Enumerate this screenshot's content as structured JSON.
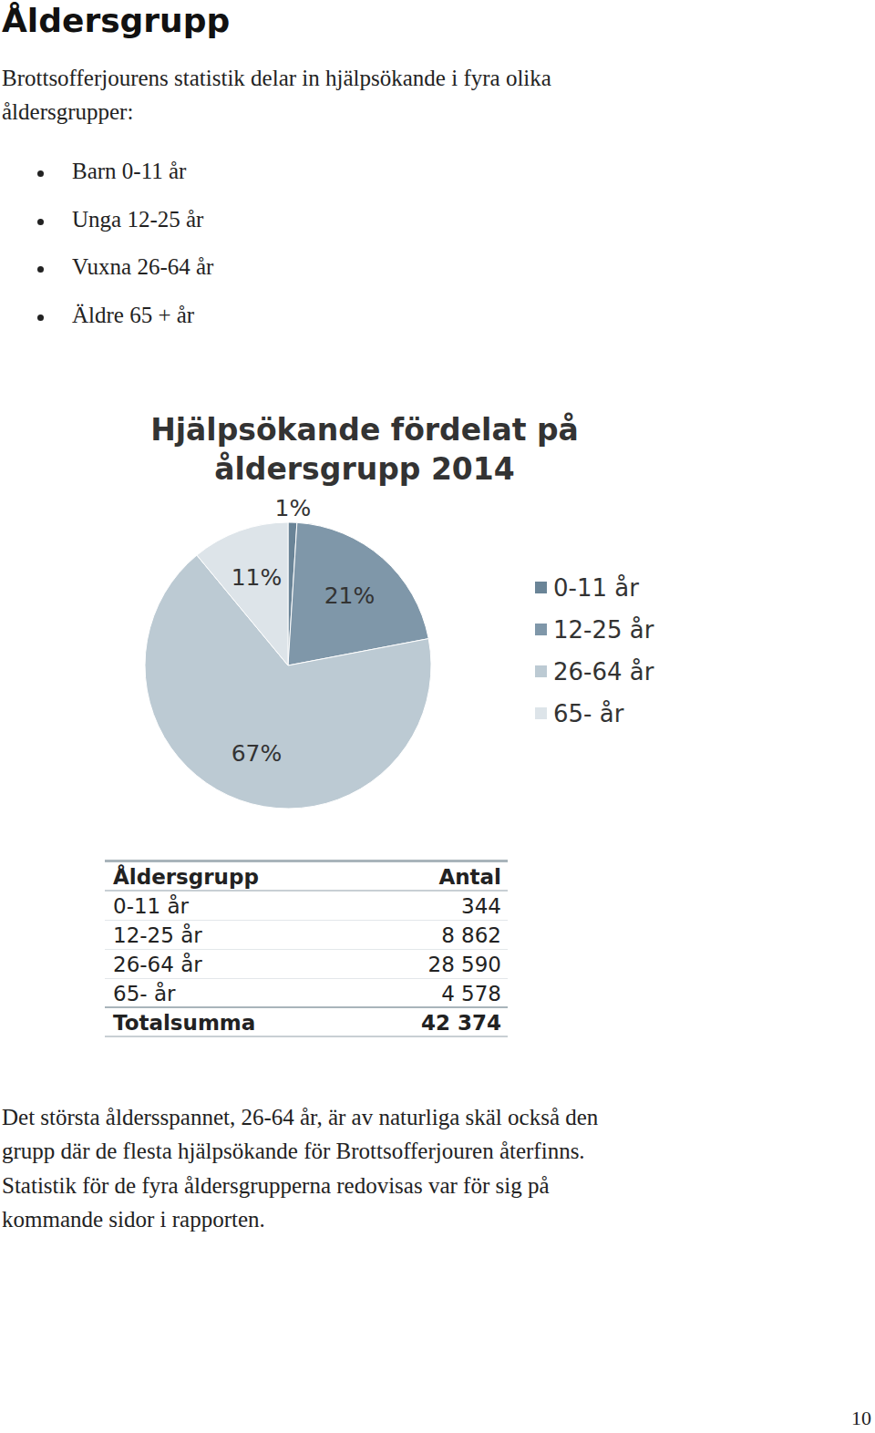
{
  "heading": "Åldersgrupp",
  "intro": [
    "Brottsofferjourens statistik delar in hjälpsökande i fyra olika",
    "åldersgrupper:"
  ],
  "bullets": [
    "Barn 0-11 år",
    "Unga 12-25 år",
    "Vuxna 26-64 år",
    "Äldre 65 + år"
  ],
  "chart_data": {
    "type": "pie",
    "title": "Hjälpsökande fördelat på åldersgrupp 2014",
    "categories": [
      "0-11 år",
      "12-25 år",
      "26-64 år",
      "65- år"
    ],
    "values": [
      1,
      21,
      67,
      11
    ],
    "value_labels": [
      "1%",
      "21%",
      "67%",
      "11%"
    ],
    "colors": [
      "#6a8497",
      "#7f97a9",
      "#bccad3",
      "#dde4e9"
    ],
    "data_labels": true,
    "legend": "right"
  },
  "table": {
    "header": [
      "Åldersgrupp",
      "Antal"
    ],
    "rows": [
      [
        "0-11 år",
        "344"
      ],
      [
        "12-25 år",
        "8 862"
      ],
      [
        "26-64 år",
        "28 590"
      ],
      [
        "65- år",
        "4 578"
      ]
    ],
    "total": [
      "Totalsumma",
      "42 374"
    ]
  },
  "paragraph": [
    "Det största åldersspannet, 26-64 år, är av naturliga skäl också den",
    "grupp där de flesta hjälpsökande för Brottsofferjouren återfinns.",
    "Statistik för de fyra åldersgrupperna redovisas var för sig på",
    "kommande sidor i rapporten."
  ],
  "page_number": "10"
}
